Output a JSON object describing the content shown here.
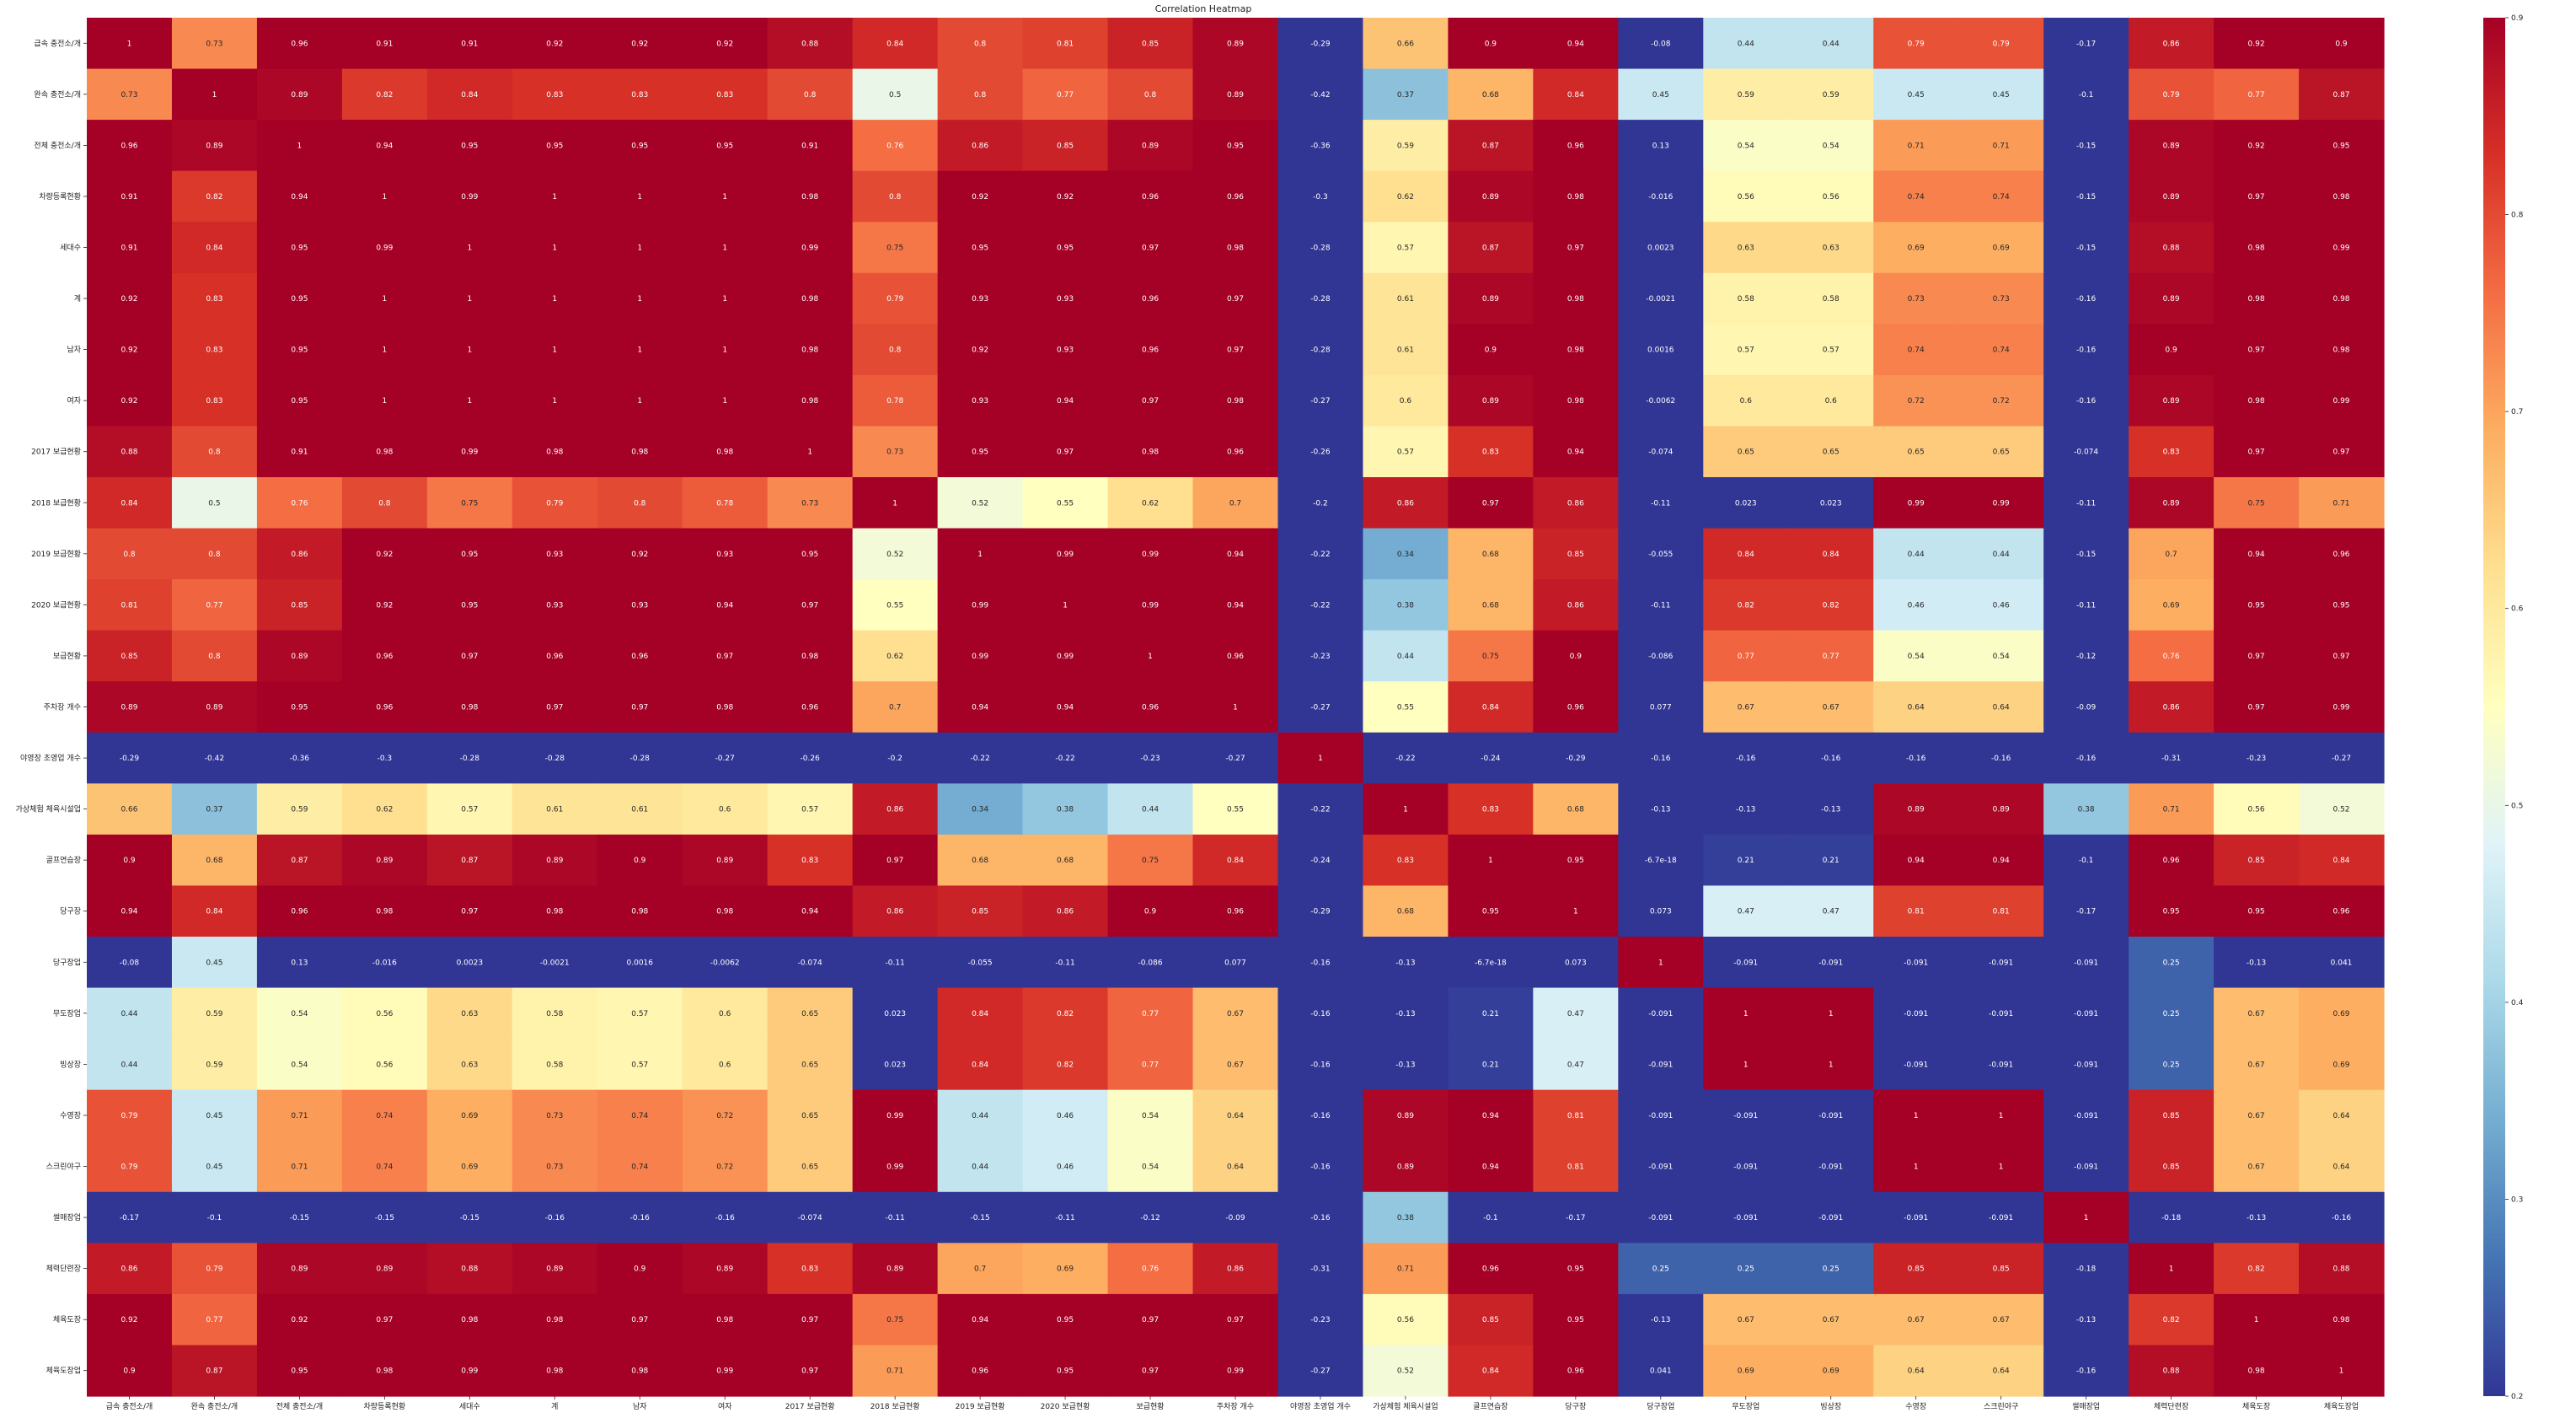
{
  "chart_data": {
    "type": "heatmap",
    "title": "Correlation Heatmap",
    "colormap": "RdYlBu_r",
    "vmin": 0.2,
    "vmax": 0.9,
    "colorbar_ticks": [
      0.2,
      0.3,
      0.4,
      0.5,
      0.6,
      0.7,
      0.8,
      0.9
    ],
    "labels": [
      "급속 충전소/개",
      "완속 충전소/개",
      "전체 충전소/개",
      "차량등록현황",
      "세대수",
      "계",
      "남자",
      "여자",
      "2017 보급현황",
      "2018 보급현황",
      "2019 보급현황",
      "2020 보급현황",
      "보급현황",
      "주차장 개수",
      "야영장 초영업 개수",
      "가상체험 체육시설업",
      "골프연습장",
      "당구장",
      "당구장업",
      "무도장업",
      "빙상장",
      "수영장",
      "스크린야구",
      "썰매장업",
      "체력단련장",
      "체육도장",
      "체육도장업"
    ],
    "matrix": [
      [
        "1",
        "0.73",
        "0.96",
        "0.91",
        "0.91",
        "0.92",
        "0.92",
        "0.92",
        "0.88",
        "0.84",
        "0.8",
        "0.81",
        "0.85",
        "0.89",
        "-0.29",
        "0.66",
        "0.9",
        "0.94",
        "-0.08",
        "0.44",
        "0.44",
        "0.79",
        "0.79",
        "-0.17",
        "0.86",
        "0.92",
        "0.9"
      ],
      [
        "0.73",
        "1",
        "0.89",
        "0.82",
        "0.84",
        "0.83",
        "0.83",
        "0.83",
        "0.8",
        "0.5",
        "0.8",
        "0.77",
        "0.8",
        "0.89",
        "-0.42",
        "0.37",
        "0.68",
        "0.84",
        "0.45",
        "0.59",
        "0.59",
        "0.45",
        "0.45",
        "-0.1",
        "0.79",
        "0.77",
        "0.87"
      ],
      [
        "0.96",
        "0.89",
        "1",
        "0.94",
        "0.95",
        "0.95",
        "0.95",
        "0.95",
        "0.91",
        "0.76",
        "0.86",
        "0.85",
        "0.89",
        "0.95",
        "-0.36",
        "0.59",
        "0.87",
        "0.96",
        "0.13",
        "0.54",
        "0.54",
        "0.71",
        "0.71",
        "-0.15",
        "0.89",
        "0.92",
        "0.95"
      ],
      [
        "0.91",
        "0.82",
        "0.94",
        "1",
        "0.99",
        "1",
        "1",
        "1",
        "0.98",
        "0.8",
        "0.92",
        "0.92",
        "0.96",
        "0.96",
        "-0.3",
        "0.62",
        "0.89",
        "0.98",
        "-0.016",
        "0.56",
        "0.56",
        "0.74",
        "0.74",
        "-0.15",
        "0.89",
        "0.97",
        "0.98"
      ],
      [
        "0.91",
        "0.84",
        "0.95",
        "0.99",
        "1",
        "1",
        "1",
        "1",
        "0.99",
        "0.75",
        "0.95",
        "0.95",
        "0.97",
        "0.98",
        "-0.28",
        "0.57",
        "0.87",
        "0.97",
        "0.0023",
        "0.63",
        "0.63",
        "0.69",
        "0.69",
        "-0.15",
        "0.88",
        "0.98",
        "0.99"
      ],
      [
        "0.92",
        "0.83",
        "0.95",
        "1",
        "1",
        "1",
        "1",
        "1",
        "0.98",
        "0.79",
        "0.93",
        "0.93",
        "0.96",
        "0.97",
        "-0.28",
        "0.61",
        "0.89",
        "0.98",
        "-0.0021",
        "0.58",
        "0.58",
        "0.73",
        "0.73",
        "-0.16",
        "0.89",
        "0.98",
        "0.98"
      ],
      [
        "0.92",
        "0.83",
        "0.95",
        "1",
        "1",
        "1",
        "1",
        "1",
        "0.98",
        "0.8",
        "0.92",
        "0.93",
        "0.96",
        "0.97",
        "-0.28",
        "0.61",
        "0.9",
        "0.98",
        "0.0016",
        "0.57",
        "0.57",
        "0.74",
        "0.74",
        "-0.16",
        "0.9",
        "0.97",
        "0.98"
      ],
      [
        "0.92",
        "0.83",
        "0.95",
        "1",
        "1",
        "1",
        "1",
        "1",
        "0.98",
        "0.78",
        "0.93",
        "0.94",
        "0.97",
        "0.98",
        "-0.27",
        "0.6",
        "0.89",
        "0.98",
        "-0.0062",
        "0.6",
        "0.6",
        "0.72",
        "0.72",
        "-0.16",
        "0.89",
        "0.98",
        "0.99"
      ],
      [
        "0.88",
        "0.8",
        "0.91",
        "0.98",
        "0.99",
        "0.98",
        "0.98",
        "0.98",
        "1",
        "0.73",
        "0.95",
        "0.97",
        "0.98",
        "0.96",
        "-0.26",
        "0.57",
        "0.83",
        "0.94",
        "-0.074",
        "0.65",
        "0.65",
        "0.65",
        "0.65",
        "-0.074",
        "0.83",
        "0.97",
        "0.97"
      ],
      [
        "0.84",
        "0.5",
        "0.76",
        "0.8",
        "0.75",
        "0.79",
        "0.8",
        "0.78",
        "0.73",
        "1",
        "0.52",
        "0.55",
        "0.62",
        "0.7",
        "-0.2",
        "0.86",
        "0.97",
        "0.86",
        "-0.11",
        "0.023",
        "0.023",
        "0.99",
        "0.99",
        "-0.11",
        "0.89",
        "0.75",
        "0.71"
      ],
      [
        "0.8",
        "0.8",
        "0.86",
        "0.92",
        "0.95",
        "0.93",
        "0.92",
        "0.93",
        "0.95",
        "0.52",
        "1",
        "0.99",
        "0.99",
        "0.94",
        "-0.22",
        "0.34",
        "0.68",
        "0.85",
        "-0.055",
        "0.84",
        "0.84",
        "0.44",
        "0.44",
        "-0.15",
        "0.7",
        "0.94",
        "0.96"
      ],
      [
        "0.81",
        "0.77",
        "0.85",
        "0.92",
        "0.95",
        "0.93",
        "0.93",
        "0.94",
        "0.97",
        "0.55",
        "0.99",
        "1",
        "0.99",
        "0.94",
        "-0.22",
        "0.38",
        "0.68",
        "0.86",
        "-0.11",
        "0.82",
        "0.82",
        "0.46",
        "0.46",
        "-0.11",
        "0.69",
        "0.95",
        "0.95"
      ],
      [
        "0.85",
        "0.8",
        "0.89",
        "0.96",
        "0.97",
        "0.96",
        "0.96",
        "0.97",
        "0.98",
        "0.62",
        "0.99",
        "0.99",
        "1",
        "0.96",
        "-0.23",
        "0.44",
        "0.75",
        "0.9",
        "-0.086",
        "0.77",
        "0.77",
        "0.54",
        "0.54",
        "-0.12",
        "0.76",
        "0.97",
        "0.97"
      ],
      [
        "0.89",
        "0.89",
        "0.95",
        "0.96",
        "0.98",
        "0.97",
        "0.97",
        "0.98",
        "0.96",
        "0.7",
        "0.94",
        "0.94",
        "0.96",
        "1",
        "-0.27",
        "0.55",
        "0.84",
        "0.96",
        "0.077",
        "0.67",
        "0.67",
        "0.64",
        "0.64",
        "-0.09",
        "0.86",
        "0.97",
        "0.99"
      ],
      [
        "-0.29",
        "-0.42",
        "-0.36",
        "-0.3",
        "-0.28",
        "-0.28",
        "-0.28",
        "-0.27",
        "-0.26",
        "-0.2",
        "-0.22",
        "-0.22",
        "-0.23",
        "-0.27",
        "1",
        "-0.22",
        "-0.24",
        "-0.29",
        "-0.16",
        "-0.16",
        "-0.16",
        "-0.16",
        "-0.16",
        "-0.16",
        "-0.31",
        "-0.23",
        "-0.27"
      ],
      [
        "0.66",
        "0.37",
        "0.59",
        "0.62",
        "0.57",
        "0.61",
        "0.61",
        "0.6",
        "0.57",
        "0.86",
        "0.34",
        "0.38",
        "0.44",
        "0.55",
        "-0.22",
        "1",
        "0.83",
        "0.68",
        "-0.13",
        "-0.13",
        "-0.13",
        "0.89",
        "0.89",
        "0.38",
        "0.71",
        "0.56",
        "0.52"
      ],
      [
        "0.9",
        "0.68",
        "0.87",
        "0.89",
        "0.87",
        "0.89",
        "0.9",
        "0.89",
        "0.83",
        "0.97",
        "0.68",
        "0.68",
        "0.75",
        "0.84",
        "-0.24",
        "0.83",
        "1",
        "0.95",
        "-6.7e-18",
        "0.21",
        "0.21",
        "0.94",
        "0.94",
        "-0.1",
        "0.96",
        "0.85",
        "0.84"
      ],
      [
        "0.94",
        "0.84",
        "0.96",
        "0.98",
        "0.97",
        "0.98",
        "0.98",
        "0.98",
        "0.94",
        "0.86",
        "0.85",
        "0.86",
        "0.9",
        "0.96",
        "-0.29",
        "0.68",
        "0.95",
        "1",
        "0.073",
        "0.47",
        "0.47",
        "0.81",
        "0.81",
        "-0.17",
        "0.95",
        "0.95",
        "0.96"
      ],
      [
        "-0.08",
        "0.45",
        "0.13",
        "-0.016",
        "0.0023",
        "-0.0021",
        "0.0016",
        "-0.0062",
        "-0.074",
        "-0.11",
        "-0.055",
        "-0.11",
        "-0.086",
        "0.077",
        "-0.16",
        "-0.13",
        "-6.7e-18",
        "0.073",
        "1",
        "-0.091",
        "-0.091",
        "-0.091",
        "-0.091",
        "-0.091",
        "0.25",
        "-0.13",
        "0.041"
      ],
      [
        "0.44",
        "0.59",
        "0.54",
        "0.56",
        "0.63",
        "0.58",
        "0.57",
        "0.6",
        "0.65",
        "0.023",
        "0.84",
        "0.82",
        "0.77",
        "0.67",
        "-0.16",
        "-0.13",
        "0.21",
        "0.47",
        "-0.091",
        "1",
        "1",
        "-0.091",
        "-0.091",
        "-0.091",
        "0.25",
        "0.67",
        "0.69"
      ],
      [
        "0.44",
        "0.59",
        "0.54",
        "0.56",
        "0.63",
        "0.58",
        "0.57",
        "0.6",
        "0.65",
        "0.023",
        "0.84",
        "0.82",
        "0.77",
        "0.67",
        "-0.16",
        "-0.13",
        "0.21",
        "0.47",
        "-0.091",
        "1",
        "1",
        "-0.091",
        "-0.091",
        "-0.091",
        "0.25",
        "0.67",
        "0.69"
      ],
      [
        "0.79",
        "0.45",
        "0.71",
        "0.74",
        "0.69",
        "0.73",
        "0.74",
        "0.72",
        "0.65",
        "0.99",
        "0.44",
        "0.46",
        "0.54",
        "0.64",
        "-0.16",
        "0.89",
        "0.94",
        "0.81",
        "-0.091",
        "-0.091",
        "-0.091",
        "1",
        "1",
        "-0.091",
        "0.85",
        "0.67",
        "0.64"
      ],
      [
        "0.79",
        "0.45",
        "0.71",
        "0.74",
        "0.69",
        "0.73",
        "0.74",
        "0.72",
        "0.65",
        "0.99",
        "0.44",
        "0.46",
        "0.54",
        "0.64",
        "-0.16",
        "0.89",
        "0.94",
        "0.81",
        "-0.091",
        "-0.091",
        "-0.091",
        "1",
        "1",
        "-0.091",
        "0.85",
        "0.67",
        "0.64"
      ],
      [
        "-0.17",
        "-0.1",
        "-0.15",
        "-0.15",
        "-0.15",
        "-0.16",
        "-0.16",
        "-0.16",
        "-0.074",
        "-0.11",
        "-0.15",
        "-0.11",
        "-0.12",
        "-0.09",
        "-0.16",
        "0.38",
        "-0.1",
        "-0.17",
        "-0.091",
        "-0.091",
        "-0.091",
        "-0.091",
        "-0.091",
        "1",
        "-0.18",
        "-0.13",
        "-0.16"
      ],
      [
        "0.86",
        "0.79",
        "0.89",
        "0.89",
        "0.88",
        "0.89",
        "0.9",
        "0.89",
        "0.83",
        "0.89",
        "0.7",
        "0.69",
        "0.76",
        "0.86",
        "-0.31",
        "0.71",
        "0.96",
        "0.95",
        "0.25",
        "0.25",
        "0.25",
        "0.85",
        "0.85",
        "-0.18",
        "1",
        "0.82",
        "0.88"
      ],
      [
        "0.92",
        "0.77",
        "0.92",
        "0.97",
        "0.98",
        "0.98",
        "0.97",
        "0.98",
        "0.97",
        "0.75",
        "0.94",
        "0.95",
        "0.97",
        "0.97",
        "-0.23",
        "0.56",
        "0.85",
        "0.95",
        "-0.13",
        "0.67",
        "0.67",
        "0.67",
        "0.67",
        "-0.13",
        "0.82",
        "1",
        "0.98"
      ],
      [
        "0.9",
        "0.87",
        "0.95",
        "0.98",
        "0.99",
        "0.98",
        "0.98",
        "0.99",
        "0.97",
        "0.71",
        "0.96",
        "0.95",
        "0.97",
        "0.99",
        "-0.27",
        "0.52",
        "0.84",
        "0.96",
        "0.041",
        "0.69",
        "0.69",
        "0.64",
        "0.64",
        "-0.16",
        "0.88",
        "0.98",
        "1"
      ]
    ]
  }
}
